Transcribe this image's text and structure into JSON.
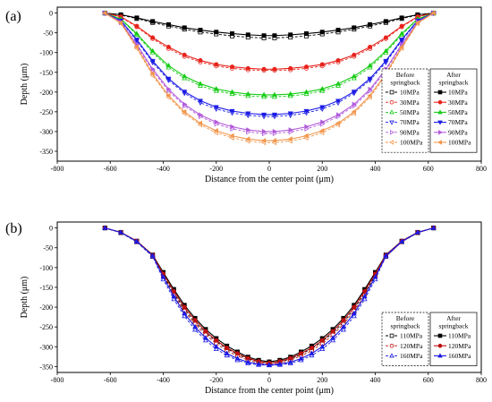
{
  "figure": {
    "panel_a_label": "(a)",
    "panel_b_label": "(b)"
  },
  "chart_data": [
    {
      "type": "line",
      "panel": "(a)",
      "xlabel": "Distance from the center point (μm)",
      "ylabel": "Depth (μm)",
      "xlim": [
        -800,
        800
      ],
      "ylim": [
        -375,
        15
      ],
      "xticks": [
        -800,
        -600,
        -400,
        -200,
        0,
        200,
        400,
        600,
        800
      ],
      "yticks": [
        0,
        -50,
        -100,
        -150,
        -200,
        -250,
        -300,
        -350
      ],
      "legend_before_title": "Before\nspringback",
      "legend_after_title": "After\nspringback",
      "legend_placement": "right",
      "x": [
        -620,
        -560,
        -500,
        -440,
        -380,
        -320,
        -260,
        -200,
        -140,
        -80,
        -20,
        20,
        80,
        140,
        200,
        260,
        320,
        380,
        440,
        500,
        560,
        620
      ],
      "series_before": [
        {
          "name": "10MPa",
          "color": "#000000",
          "marker": "square",
          "values": [
            0,
            -5,
            -14,
            -24,
            -33,
            -41,
            -48,
            -53,
            -58,
            -61,
            -63,
            -63,
            -61,
            -58,
            -53,
            -48,
            -41,
            -33,
            -24,
            -14,
            -5,
            0
          ]
        },
        {
          "name": "30MPa",
          "color": "#e8231b",
          "marker": "circle",
          "values": [
            0,
            -10,
            -35,
            -65,
            -90,
            -110,
            -124,
            -134,
            -140,
            -144,
            -145,
            -145,
            -144,
            -140,
            -134,
            -124,
            -110,
            -90,
            -65,
            -35,
            -10,
            0
          ]
        },
        {
          "name": "50MPa",
          "color": "#17cc17",
          "marker": "triangle-up",
          "values": [
            0,
            -16,
            -55,
            -100,
            -138,
            -165,
            -184,
            -197,
            -205,
            -210,
            -212,
            -212,
            -210,
            -205,
            -197,
            -184,
            -165,
            -138,
            -100,
            -55,
            -16,
            0
          ]
        },
        {
          "name": "70MPa",
          "color": "#1a1ae6",
          "marker": "triangle-down",
          "values": [
            0,
            -20,
            -70,
            -125,
            -170,
            -203,
            -227,
            -243,
            -253,
            -259,
            -262,
            -262,
            -259,
            -253,
            -243,
            -227,
            -203,
            -170,
            -125,
            -70,
            -20,
            0
          ]
        },
        {
          "name": "90MPa",
          "color": "#b25cdc",
          "marker": "triangle-right",
          "values": [
            0,
            -24,
            -82,
            -146,
            -197,
            -235,
            -262,
            -281,
            -293,
            -301,
            -305,
            -305,
            -301,
            -293,
            -281,
            -262,
            -235,
            -197,
            -146,
            -82,
            -24,
            0
          ]
        },
        {
          "name": "100MPa",
          "color": "#f2974d",
          "marker": "triangle-left",
          "values": [
            0,
            -26,
            -89,
            -158,
            -213,
            -254,
            -283,
            -303,
            -316,
            -324,
            -328,
            -328,
            -324,
            -316,
            -303,
            -283,
            -254,
            -213,
            -158,
            -89,
            -26,
            0
          ]
        }
      ],
      "series_after": [
        {
          "name": "10MPa",
          "color": "#000000",
          "marker": "square",
          "values": [
            0,
            -4,
            -12,
            -21,
            -29,
            -37,
            -43,
            -48,
            -52,
            -55,
            -57,
            -57,
            -55,
            -52,
            -48,
            -43,
            -37,
            -29,
            -21,
            -12,
            -4,
            0
          ]
        },
        {
          "name": "30MPa",
          "color": "#e8231b",
          "marker": "circle",
          "values": [
            0,
            -9,
            -33,
            -62,
            -86,
            -106,
            -120,
            -130,
            -136,
            -140,
            -142,
            -142,
            -140,
            -136,
            -130,
            -120,
            -106,
            -86,
            -62,
            -33,
            -9,
            0
          ]
        },
        {
          "name": "50MPa",
          "color": "#17cc17",
          "marker": "triangle-up",
          "values": [
            0,
            -15,
            -52,
            -96,
            -133,
            -160,
            -179,
            -192,
            -200,
            -205,
            -207,
            -207,
            -205,
            -200,
            -192,
            -179,
            -160,
            -133,
            -96,
            -52,
            -15,
            0
          ]
        },
        {
          "name": "70MPa",
          "color": "#1a1ae6",
          "marker": "triangle-down",
          "values": [
            0,
            -19,
            -67,
            -121,
            -166,
            -199,
            -222,
            -238,
            -248,
            -254,
            -257,
            -257,
            -254,
            -248,
            -238,
            -222,
            -199,
            -166,
            -121,
            -67,
            -19,
            0
          ]
        },
        {
          "name": "90MPa",
          "color": "#b25cdc",
          "marker": "triangle-right",
          "values": [
            0,
            -23,
            -79,
            -142,
            -193,
            -231,
            -258,
            -276,
            -288,
            -296,
            -300,
            -300,
            -296,
            -288,
            -276,
            -258,
            -231,
            -193,
            -142,
            -79,
            -23,
            0
          ]
        },
        {
          "name": "100MPa",
          "color": "#f2974d",
          "marker": "triangle-left",
          "values": [
            0,
            -25,
            -86,
            -154,
            -209,
            -250,
            -279,
            -298,
            -311,
            -319,
            -323,
            -323,
            -319,
            -311,
            -298,
            -279,
            -250,
            -209,
            -154,
            -86,
            -25,
            0
          ]
        }
      ]
    },
    {
      "type": "line",
      "panel": "(b)",
      "xlabel": "Distance from the center point (μm)",
      "ylabel": "Depth (μm)",
      "xlim": [
        -800,
        800
      ],
      "ylim": [
        -365,
        15
      ],
      "xticks": [
        -800,
        -600,
        -400,
        -200,
        0,
        200,
        400,
        600,
        800
      ],
      "yticks": [
        0,
        -50,
        -100,
        -150,
        -200,
        -250,
        -300,
        -350
      ],
      "legend_before_title": "Before\nspringback",
      "legend_after_title": "After\nspringback",
      "legend_placement": "lower-right",
      "x": [
        -620,
        -560,
        -500,
        -440,
        -400,
        -360,
        -320,
        -280,
        -240,
        -200,
        -160,
        -120,
        -80,
        -40,
        0,
        40,
        80,
        120,
        160,
        200,
        240,
        280,
        320,
        360,
        400,
        440,
        500,
        560,
        620
      ],
      "series_before": [
        {
          "name": "110MPa",
          "color": "#000000",
          "marker": "square",
          "values": [
            0,
            -12,
            -35,
            -72,
            -120,
            -165,
            -205,
            -238,
            -265,
            -287,
            -305,
            -319,
            -331,
            -338,
            -341,
            -338,
            -331,
            -319,
            -305,
            -287,
            -265,
            -238,
            -205,
            -165,
            -120,
            -72,
            -35,
            -12,
            0
          ]
        },
        {
          "name": "120MPa",
          "color": "#c01010",
          "marker": "circle",
          "values": [
            0,
            -12,
            -35,
            -72,
            -124,
            -170,
            -210,
            -243,
            -270,
            -292,
            -310,
            -323,
            -334,
            -341,
            -344,
            -341,
            -334,
            -323,
            -310,
            -292,
            -270,
            -243,
            -210,
            -170,
            -124,
            -72,
            -35,
            -12,
            0
          ]
        },
        {
          "name": "160MPa",
          "color": "#1a1ae6",
          "marker": "triangle-up",
          "values": [
            0,
            -12,
            -35,
            -72,
            -130,
            -180,
            -223,
            -257,
            -284,
            -306,
            -322,
            -334,
            -342,
            -346,
            -347,
            -346,
            -342,
            -334,
            -322,
            -306,
            -284,
            -257,
            -223,
            -180,
            -130,
            -72,
            -35,
            -12,
            0
          ]
        }
      ],
      "series_after": [
        {
          "name": "110MPa",
          "color": "#000000",
          "marker": "square",
          "values": [
            0,
            -11,
            -33,
            -68,
            -112,
            -155,
            -195,
            -228,
            -256,
            -279,
            -298,
            -313,
            -326,
            -334,
            -338,
            -334,
            -326,
            -313,
            -298,
            -279,
            -256,
            -228,
            -195,
            -155,
            -112,
            -68,
            -33,
            -11,
            0
          ]
        },
        {
          "name": "120MPa",
          "color": "#c01010",
          "marker": "circle",
          "values": [
            0,
            -11,
            -33,
            -69,
            -116,
            -160,
            -200,
            -233,
            -261,
            -284,
            -303,
            -317,
            -329,
            -337,
            -341,
            -337,
            -329,
            -317,
            -303,
            -284,
            -261,
            -233,
            -200,
            -160,
            -116,
            -69,
            -33,
            -11,
            0
          ]
        },
        {
          "name": "160MPa",
          "color": "#1a1ae6",
          "marker": "triangle-up",
          "values": [
            0,
            -11,
            -34,
            -70,
            -124,
            -173,
            -216,
            -250,
            -278,
            -300,
            -317,
            -330,
            -339,
            -344,
            -346,
            -344,
            -339,
            -330,
            -317,
            -300,
            -278,
            -250,
            -216,
            -173,
            -124,
            -70,
            -34,
            -11,
            0
          ]
        }
      ]
    }
  ]
}
